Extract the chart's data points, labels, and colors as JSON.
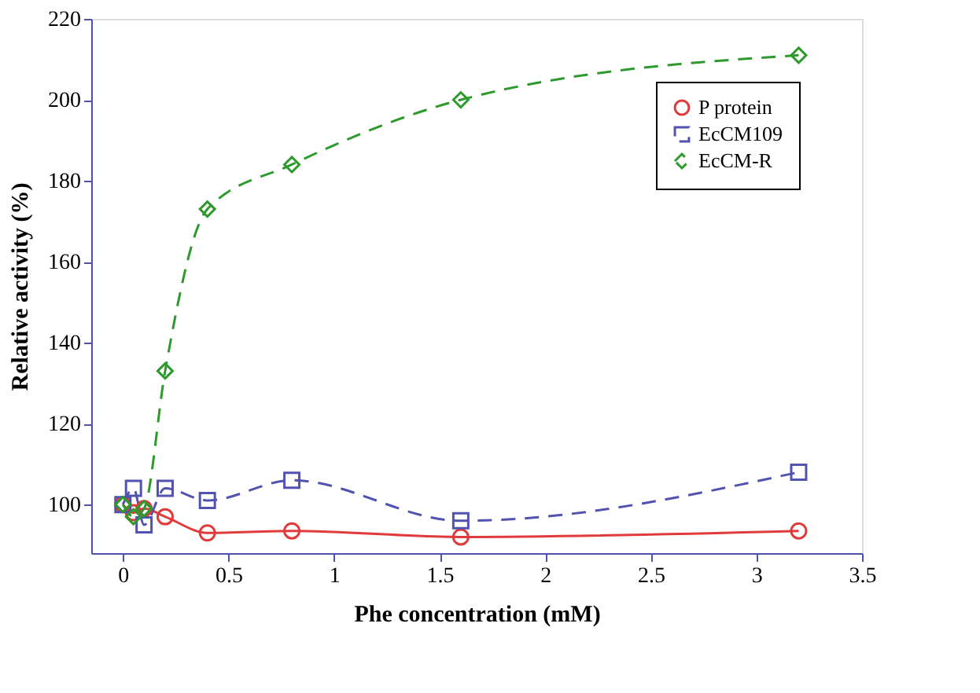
{
  "chart_data": {
    "type": "line",
    "xlabel": "Phe concentration (mM)",
    "ylabel": "Relative activity (%)",
    "x": [
      0,
      0.05,
      0.1,
      0.2,
      0.4,
      0.8,
      1.6,
      3.2
    ],
    "series": [
      {
        "name": "P protein",
        "color": "#e03a3a",
        "marker": "circle",
        "line_style": "solid",
        "values": [
          100,
          98,
          99,
          97,
          93,
          93.5,
          92,
          93.5
        ]
      },
      {
        "name": "EcCM109",
        "color": "#5252b0",
        "marker": "square",
        "line_style": "dashed",
        "values": [
          100,
          104,
          95,
          104,
          101,
          106,
          96,
          108
        ]
      },
      {
        "name": "EcCM-R",
        "color": "#2e9a2e",
        "marker": "diamond",
        "line_style": "dashed",
        "values": [
          100,
          97,
          99,
          133,
          173,
          184,
          200,
          211
        ]
      }
    ],
    "xlim": [
      -0.15,
      3.5
    ],
    "xticks": [
      0,
      0.5,
      1,
      1.5,
      2,
      2.5,
      3,
      3.5
    ],
    "ylim": [
      88,
      220
    ],
    "yticks": [
      100,
      120,
      140,
      160,
      180,
      200,
      220
    ],
    "grid": false,
    "legend": "top right"
  }
}
